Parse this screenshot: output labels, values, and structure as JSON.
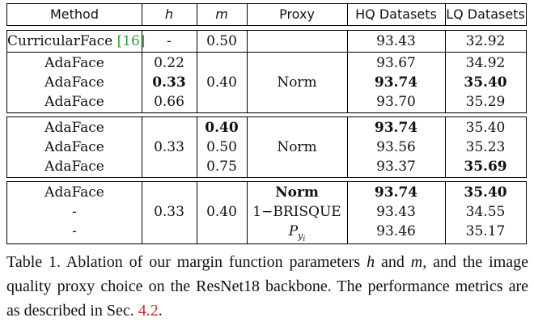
{
  "table": {
    "headers": [
      "Method",
      "h",
      "m",
      "Proxy",
      "HQ Datasets",
      "LQ Datasets"
    ],
    "groups": [
      {
        "rows": [
          {
            "method": "CurricularFace",
            "cite": "[16]",
            "h": "-",
            "m": "0.50",
            "proxy": "",
            "hq": "93.43",
            "lq": "32.92"
          }
        ]
      },
      {
        "rows": [
          {
            "method": "AdaFace",
            "h": "0.22",
            "m": "",
            "proxy": "",
            "hq": "93.67",
            "lq": "34.92"
          },
          {
            "method": "AdaFace",
            "h": "0.33",
            "m": "0.40",
            "proxy": "Norm",
            "hq": "93.74",
            "lq": "35.40"
          },
          {
            "method": "AdaFace",
            "h": "0.66",
            "m": "",
            "proxy": "",
            "hq": "93.70",
            "lq": "35.29"
          }
        ]
      },
      {
        "rows": [
          {
            "method": "AdaFace",
            "h": "",
            "m": "0.40",
            "proxy": "",
            "hq": "93.74",
            "lq": "35.40"
          },
          {
            "method": "AdaFace",
            "h": "0.33",
            "m": "0.50",
            "proxy": "Norm",
            "hq": "93.56",
            "lq": "35.23"
          },
          {
            "method": "AdaFace",
            "h": "",
            "m": "0.75",
            "proxy": "",
            "hq": "93.37",
            "lq": "35.69"
          }
        ]
      },
      {
        "rows": [
          {
            "method": "AdaFace",
            "h": "",
            "m": "",
            "proxy": "Norm",
            "hq": "93.74",
            "lq": "35.40"
          },
          {
            "method": "-",
            "h": "0.33",
            "m": "0.40",
            "proxy": "1−BRISQUE",
            "hq": "93.43",
            "lq": "34.55"
          },
          {
            "method": "-",
            "h": "",
            "m": "",
            "proxy": "P",
            "proxy_sub": "y",
            "proxy_subsub": "i",
            "hq": "93.46",
            "lq": "35.17"
          }
        ]
      }
    ]
  },
  "caption": {
    "prefix": "Table 1. Ablation of our margin function parameters",
    "var_h": "h",
    "and": "and",
    "var_m": "m",
    "middle": ", and the image quality proxy choice on the ResNet18 backbone. The performance metrics are as described in Sec.",
    "ref": "4.2",
    "end": "."
  }
}
